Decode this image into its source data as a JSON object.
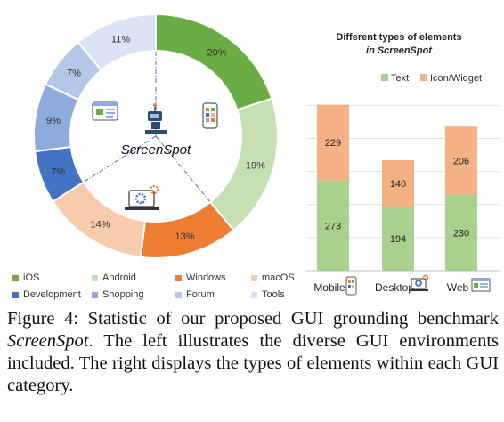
{
  "donut": {
    "center_title": "ScreenSpot",
    "segments": [
      {
        "name": "iOS",
        "pct": "20%",
        "value": 20,
        "color": "#6aad45"
      },
      {
        "name": "Android",
        "pct": "19%",
        "value": 19,
        "color": "#c6e0b4"
      },
      {
        "name": "Windows",
        "pct": "13%",
        "value": 13,
        "color": "#ed7d31"
      },
      {
        "name": "macOS",
        "pct": "14%",
        "value": 14,
        "color": "#f8cbad"
      },
      {
        "name": "Development",
        "pct": "7%",
        "value": 7,
        "color": "#4472c4"
      },
      {
        "name": "Shopping",
        "pct": "9%",
        "value": 9,
        "color": "#8faadc"
      },
      {
        "name": "Forum",
        "pct": "7%",
        "value": 7,
        "color": "#b4c7e7"
      },
      {
        "name": "Tools",
        "pct": "11%",
        "value": 11,
        "color": "#dae3f3"
      }
    ]
  },
  "legend": {
    "row1": [
      "iOS",
      "Android",
      "Windows",
      "macOS"
    ],
    "row2": [
      "Development",
      "Shopping",
      "Forum",
      "Tools"
    ]
  },
  "chart_data": {
    "type": "bar",
    "stacked": true,
    "title_line1": "Different types of elements",
    "title_line2": "in ScreenSpot",
    "categories": [
      "Mobile",
      "Desktop",
      "Web"
    ],
    "series": [
      {
        "name": "Text",
        "values": [
          273,
          194,
          230
        ],
        "color": "#a9d18e"
      },
      {
        "name": "Icon/Widget",
        "values": [
          229,
          140,
          206
        ],
        "color": "#f4b183"
      }
    ],
    "ylim": [
      0,
      520
    ]
  },
  "caption": {
    "prefix": "Figure 4:  Statistic of our proposed GUI grounding benchmark ",
    "italic": "ScreenSpot",
    "suffix": ". The left illustrates the diverse GUI environments included.  The right displays the types of elements within each GUI category."
  }
}
